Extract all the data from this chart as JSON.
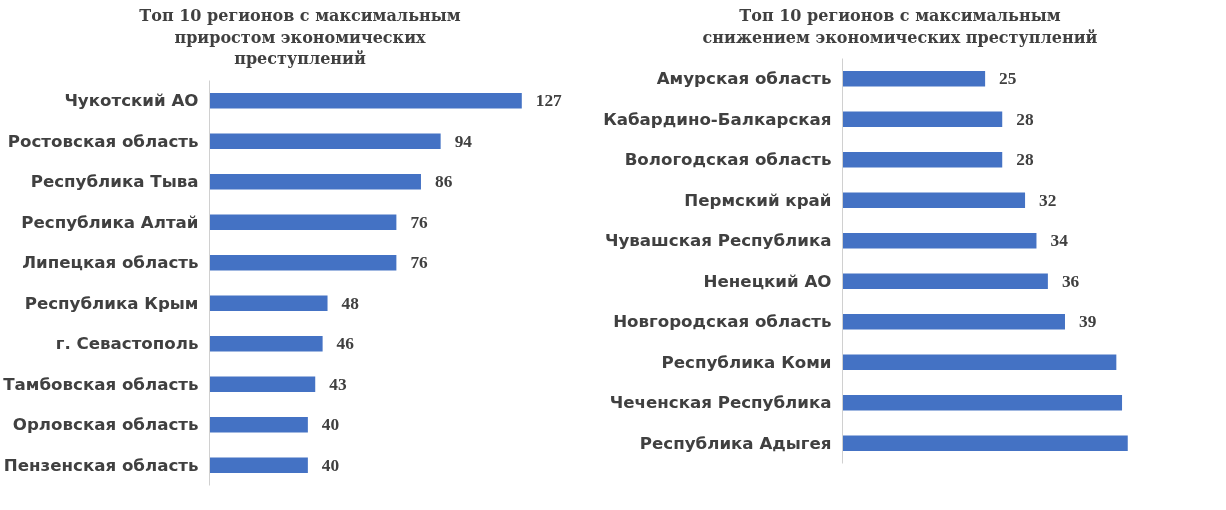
{
  "chart_data": [
    {
      "type": "bar",
      "orientation": "horizontal",
      "title": "Топ 10 регионов с максимальным\nприростом экономических\nпреступлений",
      "categories": [
        "Чукотский АО",
        "Ростовская область",
        "Республика Тыва",
        "Республика Алтай",
        "Липецкая область",
        "Республика Крым",
        "г. Севастополь",
        "Тамбовская область",
        "Орловская область",
        "Пензенская область"
      ],
      "values": [
        127,
        94,
        86,
        76,
        76,
        48,
        46,
        43,
        40,
        40
      ],
      "color": "#4472c4",
      "data_labels": true,
      "grid": false
    },
    {
      "type": "bar",
      "orientation": "horizontal",
      "title": "Топ 10 регионов с максимальным\nснижением экономических преступлений",
      "categories": [
        "Амурская область",
        "Кабардино-Балкарская",
        "Вологодская область",
        "Пермский край",
        "Чувашская Республика",
        "Ненецкий АО",
        "Новгородская область",
        "Республика Коми",
        "Чеченская Республика",
        "Республика Адыгея"
      ],
      "values": [
        25,
        28,
        28,
        32,
        34,
        36,
        39,
        48,
        49,
        50
      ],
      "value_labels": [
        "25",
        "28",
        "28",
        "32",
        "34",
        "36",
        "39",
        null,
        null,
        null
      ],
      "color": "#4472c4",
      "grid": false
    }
  ]
}
